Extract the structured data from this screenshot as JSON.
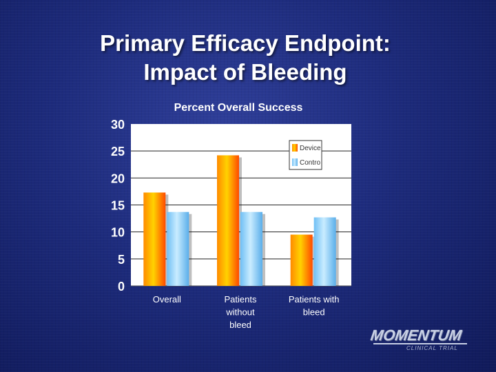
{
  "slide": {
    "title_line1": "Primary Efficacy Endpoint:",
    "title_line2": "Impact of Bleeding"
  },
  "logo": {
    "name": "MOMENTUM",
    "tagline": "CLINICAL TRIAL"
  },
  "chart_data": {
    "type": "bar",
    "title": "Percent Overall Success",
    "categories": [
      "Overall",
      "Patients without bleed",
      "Patients with bleed"
    ],
    "category_lines": [
      [
        "Overall"
      ],
      [
        "Patients",
        "without",
        "bleed"
      ],
      [
        "Patients with",
        "bleed"
      ]
    ],
    "series": [
      {
        "name": "Device",
        "values": [
          17.3,
          24.2,
          9.5
        ],
        "color": "#ff9a00"
      },
      {
        "name": "Contro",
        "values": [
          13.7,
          13.7,
          12.7
        ],
        "color": "#8fd0ff"
      }
    ],
    "ylim": [
      0,
      30
    ],
    "yticks": [
      0,
      5,
      10,
      15,
      20,
      25,
      30
    ],
    "xlabel": "",
    "ylabel": "",
    "grid": true,
    "legend_position": "top-right"
  }
}
